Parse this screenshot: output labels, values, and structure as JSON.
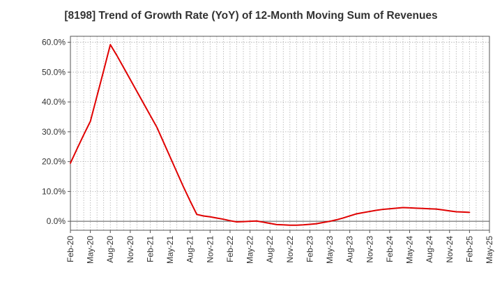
{
  "chart_data": {
    "type": "line",
    "title": "[8198]  Trend of Growth Rate (YoY) of 12-Month Moving Sum of Revenues",
    "xlabel": "",
    "ylabel": "",
    "x": [
      "Feb-20",
      "Mar-20",
      "Apr-20",
      "May-20",
      "Jun-20",
      "Jul-20",
      "Aug-20",
      "Sep-20",
      "Oct-20",
      "Nov-20",
      "Dec-20",
      "Jan-21",
      "Feb-21",
      "Mar-21",
      "Apr-21",
      "May-21",
      "Jun-21",
      "Jul-21",
      "Aug-21",
      "Sep-21",
      "Oct-21",
      "Nov-21",
      "Dec-21",
      "Jan-22",
      "Feb-22",
      "Mar-22",
      "Apr-22",
      "May-22",
      "Jun-22",
      "Jul-22",
      "Aug-22",
      "Sep-22",
      "Oct-22",
      "Nov-22",
      "Dec-22",
      "Jan-23",
      "Feb-23",
      "Mar-23",
      "Apr-23",
      "May-23",
      "Jun-23",
      "Jul-23",
      "Aug-23",
      "Sep-23",
      "Oct-23",
      "Nov-23",
      "Dec-23",
      "Jan-24",
      "Feb-24",
      "Mar-24",
      "Apr-24",
      "May-24",
      "Jun-24",
      "Jul-24",
      "Aug-24",
      "Sep-24",
      "Oct-24",
      "Nov-24",
      "Dec-24",
      "Jan-25",
      "Feb-25"
    ],
    "series": [
      {
        "color": "#e00000",
        "values": [
          19.5,
          24.3,
          29.0,
          33.5,
          42.0,
          50.5,
          59.2,
          55.5,
          51.5,
          47.5,
          43.5,
          39.5,
          35.5,
          31.5,
          26.5,
          21.5,
          16.5,
          11.5,
          6.8,
          2.3,
          1.8,
          1.5,
          1.1,
          0.7,
          0.2,
          -0.2,
          -0.1,
          0.0,
          0.1,
          -0.3,
          -0.7,
          -1.1,
          -1.2,
          -1.3,
          -1.3,
          -1.2,
          -1.0,
          -0.8,
          -0.4,
          0.0,
          0.5,
          1.1,
          1.8,
          2.5,
          2.9,
          3.3,
          3.7,
          4.0,
          4.2,
          4.4,
          4.6,
          4.5,
          4.4,
          4.3,
          4.2,
          4.1,
          3.8,
          3.5,
          3.2,
          3.1,
          3.0
        ]
      }
    ],
    "xticks": [
      "Feb-20",
      "May-20",
      "Aug-20",
      "Nov-20",
      "Feb-21",
      "May-21",
      "Aug-21",
      "Nov-21",
      "Feb-22",
      "May-22",
      "Aug-22",
      "Nov-22",
      "Feb-23",
      "May-23",
      "Aug-23",
      "Nov-23",
      "Feb-24",
      "May-24",
      "Aug-24",
      "Nov-24",
      "Feb-25",
      "May-25"
    ],
    "yticks": [
      0,
      10,
      20,
      30,
      40,
      50,
      60
    ],
    "ytick_labels": [
      "0.0%",
      "10.0%",
      "20.0%",
      "30.0%",
      "40.0%",
      "50.0%",
      "60.0%"
    ],
    "ylim": [
      -3,
      62
    ],
    "xrange": [
      "Feb-20",
      "May-25"
    ],
    "grid": true,
    "legend": "none"
  }
}
